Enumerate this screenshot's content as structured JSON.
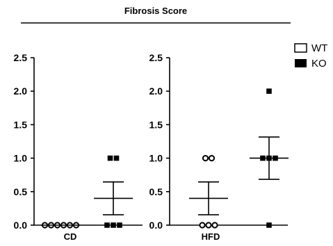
{
  "chart_data": {
    "type": "scatter",
    "title": "Fibrosis Score",
    "ylim": [
      0,
      2.5
    ],
    "yticks": [
      "0.0",
      "0.5",
      "1.0",
      "1.5",
      "2.0",
      "2.5"
    ],
    "yticks_values": [
      0,
      0.5,
      1.0,
      1.5,
      2.0,
      2.5
    ],
    "legend": {
      "placement": "top-right",
      "entries": [
        {
          "label": "WT",
          "marker": "open-square",
          "color": "#000000"
        },
        {
          "label": "KO",
          "marker": "filled-square",
          "color": "#000000"
        }
      ]
    },
    "panels": [
      {
        "label": "CD",
        "groups": [
          {
            "name": "WT",
            "marker": "open-circle",
            "points": [
              0,
              0,
              0,
              0,
              0,
              0
            ],
            "mean": 0.0,
            "sem": 0.0
          },
          {
            "name": "KO",
            "marker": "filled-square",
            "points": [
              0,
              0,
              0,
              1,
              1
            ],
            "mean": 0.4,
            "sem": 0.245
          }
        ]
      },
      {
        "label": "HFD",
        "groups": [
          {
            "name": "WT",
            "marker": "open-circle",
            "points": [
              0,
              0,
              0,
              1,
              1
            ],
            "mean": 0.4,
            "sem": 0.245
          },
          {
            "name": "KO",
            "marker": "filled-square",
            "points": [
              0,
              1,
              1,
              1,
              2
            ],
            "mean": 1.0,
            "sem": 0.316
          }
        ]
      }
    ]
  }
}
